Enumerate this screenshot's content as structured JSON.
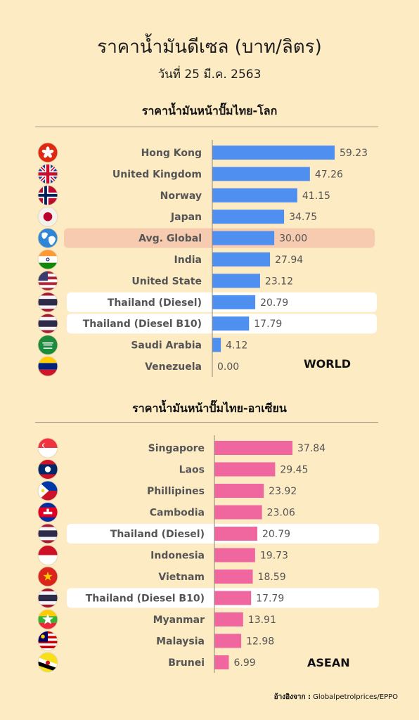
{
  "header": {
    "title": "ราคาน้ำมันดีเซล (บาท/ลิตร)",
    "subtitle": "วันที่ 25 มี.ค. 2563"
  },
  "footer": {
    "source_label": "อ้างอิงจาก :",
    "source_value": "Globalpetrolprices/EPPO"
  },
  "colors": {
    "background": "#fdebc4",
    "world_bar": "#4f8ff0",
    "asean_bar": "#f0679f",
    "global_highlight": "#f6cbb0",
    "thailand_highlight": "#ffffff"
  },
  "chart_data": [
    {
      "type": "bar",
      "orientation": "horizontal",
      "title": "ราคาน้ำมันหน้าปั๊มไทย-โลก",
      "tag": "WORLD",
      "categories": [
        "Hong Kong",
        "United Kingdom",
        "Norway",
        "Japan",
        "Avg. Global",
        "India",
        "United State",
        "Thailand (Diesel)",
        "Thailand (Diesel B10)",
        "Saudi Arabia",
        "Venezuela"
      ],
      "values": [
        59.23,
        47.26,
        41.15,
        34.75,
        30.0,
        27.94,
        23.12,
        20.79,
        17.79,
        4.12,
        0.0
      ],
      "value_labels": [
        "59.23",
        "47.26",
        "41.15",
        "34.75",
        "30.00",
        "27.94",
        "23.12",
        "20.79",
        "17.79",
        "4.12",
        "0.00"
      ],
      "flags": [
        "hong-kong",
        "united-kingdom",
        "norway",
        "japan",
        "globe",
        "india",
        "united-states",
        "thailand",
        "thailand",
        "saudi-arabia",
        "venezuela"
      ],
      "highlights": {
        "Avg. Global": "global",
        "Thailand (Diesel)": "thailand",
        "Thailand (Diesel B10)": "thailand"
      },
      "bar_color": "#4f8ff0",
      "xlim": [
        0,
        59.23
      ],
      "grid": false,
      "legend": "none"
    },
    {
      "type": "bar",
      "orientation": "horizontal",
      "title": "ราคาน้ำมันหน้าปั๊มไทย-อาเซียน",
      "tag": "ASEAN",
      "categories": [
        "Singapore",
        "Laos",
        "Phillipines",
        "Cambodia",
        "Thailand (Diesel)",
        "Indonesia",
        "Vietnam",
        "Thailand (Diesel B10)",
        "Myanmar",
        "Malaysia",
        "Brunei"
      ],
      "values": [
        37.84,
        29.45,
        23.92,
        23.06,
        20.79,
        19.73,
        18.59,
        17.79,
        13.91,
        12.98,
        6.99
      ],
      "value_labels": [
        "37.84",
        "29.45",
        "23.92",
        "23.06",
        "20.79",
        "19.73",
        "18.59",
        "17.79",
        "13.91",
        "12.98",
        "6.99"
      ],
      "flags": [
        "singapore",
        "laos",
        "philippines",
        "cambodia",
        "thailand",
        "indonesia",
        "vietnam",
        "thailand",
        "myanmar",
        "malaysia",
        "brunei"
      ],
      "highlights": {
        "Thailand (Diesel)": "thailand",
        "Thailand (Diesel B10)": "thailand"
      },
      "bar_color": "#f0679f",
      "xlim": [
        0,
        37.84
      ],
      "grid": false,
      "legend": "none"
    }
  ]
}
